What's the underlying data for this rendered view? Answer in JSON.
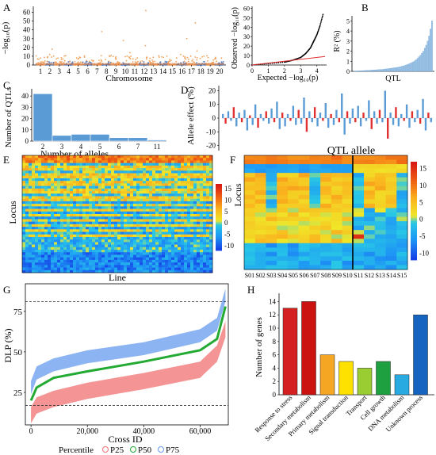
{
  "panels": {
    "A": {
      "letter": "A",
      "ylabel": "−log₁₀(p)",
      "xlabel": "Chromosome",
      "yticks": [
        "0",
        "10",
        "20",
        "30",
        "40",
        "50",
        "60"
      ],
      "chromosomes": [
        "1",
        "2",
        "3",
        "4",
        "5",
        "6",
        "7",
        "8",
        "9",
        "10",
        "11",
        "12",
        "13",
        "14",
        "15",
        "16",
        "17",
        "18",
        "19",
        "20"
      ],
      "colors": {
        "orange": "#f0a05a",
        "blue": "#4a7bc4"
      }
    },
    "QQ": {
      "xlabel": "Expected −log₁₀(p)",
      "ylabel": "Observed −log₁₀(p)",
      "xticks": [
        "0",
        "1",
        "2",
        "3",
        "4"
      ],
      "yticks": [
        "0",
        "10",
        "20",
        "30",
        "40",
        "50",
        "60"
      ]
    },
    "B": {
      "letter": "B",
      "ylabel": "R² (%)",
      "xlabel": "QTL",
      "yticks": [
        "0",
        "1",
        "2",
        "3",
        "4",
        "5"
      ],
      "bar_color": "#9cc3e6"
    },
    "C": {
      "letter": "C",
      "ylabel": "Number of QTLs",
      "xlabel": "Number of alleles",
      "bar_color": "#5b9bd5"
    },
    "D": {
      "letter": "D",
      "ylabel": "Allele effect (%)",
      "yticks": [
        "-20",
        "-10",
        "0",
        "10",
        "20"
      ],
      "colors": {
        "pos": "#5b9bd5",
        "neg": "#e03030"
      }
    },
    "E": {
      "letter": "E",
      "ylabel": "Locus",
      "xlabel": "Line",
      "colorbar_ticks": [
        "15",
        "10",
        "5",
        "0",
        "-5",
        "-10"
      ]
    },
    "F": {
      "letter": "F",
      "title": "QTL allele",
      "ylabel": "Locus",
      "colorbar_ticks": [
        "15",
        "10",
        "5",
        "0",
        "-5",
        "-10"
      ],
      "xticks": [
        "S01",
        "S02",
        "S03",
        "S04",
        "S05",
        "S06",
        "S07",
        "S08",
        "S09",
        "S10",
        "S11",
        "S12",
        "S13",
        "S14",
        "S15"
      ]
    },
    "G": {
      "letter": "G",
      "ylabel": "DLP (%)",
      "xlabel": "Cross ID",
      "yticks": [
        "25",
        "50",
        "75"
      ],
      "xticks": [
        "0",
        "20,000",
        "40,000",
        "60,000"
      ],
      "legend_title": "Percentile",
      "legend": [
        "P25",
        "P50",
        "P75"
      ],
      "colors": {
        "P25": "#f07070",
        "P50": "#22aa33",
        "P75": "#6699ee"
      }
    },
    "H": {
      "letter": "H",
      "ylabel": "Number of genes",
      "yticks": [
        "0",
        "2",
        "4",
        "6",
        "8",
        "10",
        "12",
        "14"
      ]
    }
  },
  "chart_data": [
    {
      "type": "scatter",
      "panel": "A",
      "title": "",
      "xlabel": "Chromosome",
      "ylabel": "−log₁₀(p)",
      "ylim": [
        0,
        65
      ],
      "note_series": "Manhattan plot: points mostly below 5; scattered peaks up to ~60 near chromosomes 2, 8, 12, 17"
    },
    {
      "type": "line",
      "panel": "QQ",
      "xlabel": "Expected −log₁₀(p)",
      "ylabel": "Observed −log₁₀(p)",
      "xlim": [
        0,
        4.5
      ],
      "ylim": [
        0,
        62
      ],
      "series": [
        {
          "values_x": [
            0,
            1,
            2,
            2.5,
            3,
            3.3,
            3.6,
            3.8,
            4,
            4.2,
            4.4
          ],
          "values_y": [
            0,
            1.5,
            3,
            5,
            8,
            12,
            18,
            25,
            32,
            42,
            55
          ]
        }
      ]
    },
    {
      "type": "bar",
      "panel": "B",
      "xlabel": "QTL",
      "ylabel": "R² (%)",
      "ylim": [
        0,
        5.5
      ],
      "values": [
        0.02,
        0.03,
        0.04,
        0.05,
        0.05,
        0.06,
        0.07,
        0.08,
        0.09,
        0.1,
        0.1,
        0.11,
        0.12,
        0.13,
        0.14,
        0.15,
        0.16,
        0.17,
        0.18,
        0.19,
        0.2,
        0.22,
        0.24,
        0.26,
        0.28,
        0.3,
        0.32,
        0.34,
        0.36,
        0.38,
        0.4,
        0.43,
        0.46,
        0.5,
        0.54,
        0.58,
        0.63,
        0.68,
        0.74,
        0.8,
        0.87,
        0.95,
        1.05,
        1.15,
        1.3,
        1.45,
        1.6,
        1.8,
        2.0,
        2.3,
        2.6,
        3.0,
        3.5,
        4.2,
        5.0
      ]
    },
    {
      "type": "bar",
      "panel": "C",
      "xlabel": "Number of alleles",
      "ylabel": "Number of QTLs",
      "ylim": [
        0,
        45
      ],
      "categories": [
        "2",
        "3",
        "4",
        "5",
        "6",
        "7",
        "11"
      ],
      "values": [
        42,
        5,
        6,
        6,
        3,
        3,
        1
      ],
      "yticks": [
        "0",
        "10",
        "20",
        "30",
        "40"
      ]
    },
    {
      "type": "bar",
      "panel": "D",
      "ylabel": "Allele effect (%)",
      "ylim": [
        -22,
        22
      ],
      "values": [
        3,
        -4,
        5,
        -2,
        8,
        -6,
        4,
        -3,
        6,
        -9,
        2,
        -5,
        10,
        -7,
        3,
        -2,
        5,
        -4,
        7,
        -3,
        12,
        -8,
        4,
        -6,
        3,
        -2,
        9,
        -5,
        6,
        -4,
        15,
        -10,
        5,
        -3,
        8,
        -6,
        4,
        -2,
        11,
        -7,
        3,
        -5,
        6,
        -3,
        18,
        -12,
        5,
        -4,
        7,
        -3,
        9,
        -6,
        4,
        -2,
        13,
        -8,
        5,
        -4,
        6,
        -3,
        20,
        -15,
        4,
        -5,
        8,
        -6,
        3,
        -2,
        10,
        -7,
        5,
        -3,
        6,
        -4,
        14,
        -9,
        4,
        -3
      ]
    },
    {
      "type": "heatmap",
      "panel": "E",
      "xlabel": "Line",
      "ylabel": "Locus",
      "zlim": [
        -12,
        17
      ]
    },
    {
      "type": "heatmap",
      "panel": "F",
      "ylabel": "Locus",
      "zlim": [
        -12,
        17
      ],
      "categories": [
        "S01",
        "S02",
        "S03",
        "S04",
        "S05",
        "S06",
        "S07",
        "S08",
        "S09",
        "S10",
        "S11",
        "S12",
        "S13",
        "S14",
        "S15"
      ]
    },
    {
      "type": "scatter",
      "panel": "G",
      "xlabel": "Cross ID",
      "ylabel": "DLP (%)",
      "xlim": [
        -2000,
        70000
      ],
      "ylim": [
        5,
        92
      ],
      "series": [
        {
          "name": "P25",
          "x": [
            0,
            2000,
            8000,
            20000,
            40000,
            60000,
            66000,
            69000
          ],
          "y": [
            12,
            18,
            22,
            27,
            33,
            40,
            50,
            65
          ]
        },
        {
          "name": "P50",
          "x": [
            0,
            2000,
            8000,
            20000,
            40000,
            60000,
            66000,
            69000
          ],
          "y": [
            20,
            28,
            34,
            38,
            44,
            51,
            58,
            78
          ]
        },
        {
          "name": "P75",
          "x": [
            0,
            2000,
            8000,
            20000,
            40000,
            60000,
            66000,
            69000
          ],
          "y": [
            28,
            37,
            42,
            47,
            52,
            60,
            67,
            85
          ]
        }
      ],
      "hlines": [
        81,
        17
      ]
    },
    {
      "type": "bar",
      "panel": "H",
      "ylabel": "Number of genes",
      "ylim": [
        0,
        15
      ],
      "categories": [
        "Response to stress",
        "Secondary metabolism",
        "Primary metabolism",
        "Signal transduction",
        "Transport",
        "Cell growth",
        "DNA metabolism",
        "Unknown process"
      ],
      "values": [
        13,
        14,
        6,
        5,
        4,
        5,
        3,
        12
      ],
      "colors": [
        "#d42020",
        "#cc1111",
        "#f5a623",
        "#ffe100",
        "#9acd32",
        "#1fa040",
        "#29abe2",
        "#1565c0"
      ]
    }
  ]
}
